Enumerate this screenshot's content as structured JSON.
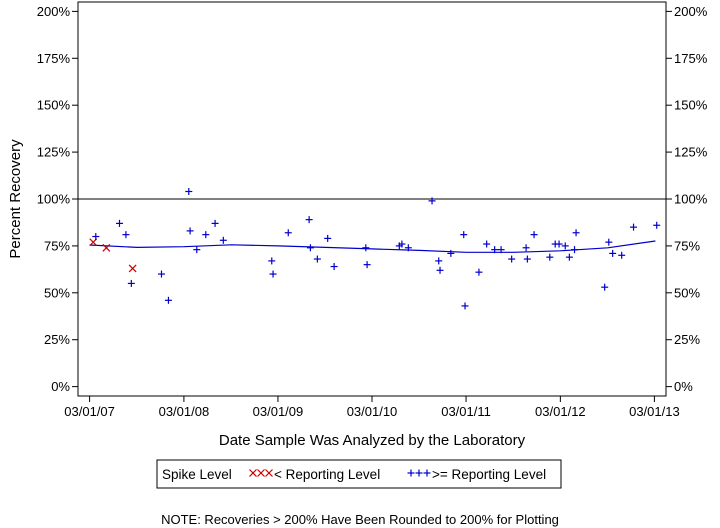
{
  "chart_data": {
    "type": "scatter",
    "xlabel": "Date Sample Was Analyzed by the Laboratory",
    "ylabel": "Percent Recovery",
    "x_ticks": [
      "03/01/07",
      "03/01/08",
      "03/01/09",
      "03/01/10",
      "03/01/11",
      "03/01/12",
      "03/01/13"
    ],
    "y_ticks": [
      "0%",
      "25%",
      "50%",
      "75%",
      "100%",
      "125%",
      "150%",
      "175%",
      "200%"
    ],
    "x_range": [
      "2007-01-15",
      "2013-04-15"
    ],
    "ylim": [
      -5,
      205
    ],
    "reference_line": 100,
    "grid": false,
    "legend_position": "bottom",
    "legend_title": "Spike Level",
    "series": [
      {
        "name": "< Reporting Level",
        "marker": "x",
        "color": "#cc0000",
        "points": [
          {
            "x": "2007-03-15",
            "y": 77
          },
          {
            "x": "2007-05-05",
            "y": 74
          },
          {
            "x": "2007-08-15",
            "y": 63
          }
        ]
      },
      {
        "name": ">= Reporting Level",
        "marker": "+",
        "color": "#0000cc",
        "points": [
          {
            "x": "2007-03-25",
            "y": 80
          },
          {
            "x": "2007-06-25",
            "y": 87
          },
          {
            "x": "2007-07-20",
            "y": 81
          },
          {
            "x": "2007-08-10",
            "y": 55
          },
          {
            "x": "2007-12-05",
            "y": 60
          },
          {
            "x": "2008-01-01",
            "y": 46
          },
          {
            "x": "2008-03-20",
            "y": 104
          },
          {
            "x": "2008-03-25",
            "y": 83
          },
          {
            "x": "2008-04-20",
            "y": 73
          },
          {
            "x": "2008-05-25",
            "y": 81
          },
          {
            "x": "2008-06-30",
            "y": 87
          },
          {
            "x": "2008-08-01",
            "y": 78
          },
          {
            "x": "2009-02-05",
            "y": 67
          },
          {
            "x": "2009-02-10",
            "y": 60
          },
          {
            "x": "2009-04-10",
            "y": 82
          },
          {
            "x": "2009-06-30",
            "y": 89
          },
          {
            "x": "2009-07-05",
            "y": 74
          },
          {
            "x": "2009-08-01",
            "y": 68
          },
          {
            "x": "2009-09-10",
            "y": 79
          },
          {
            "x": "2009-10-05",
            "y": 64
          },
          {
            "x": "2010-02-05",
            "y": 74
          },
          {
            "x": "2010-02-10",
            "y": 65
          },
          {
            "x": "2010-06-15",
            "y": 75
          },
          {
            "x": "2010-06-25",
            "y": 76
          },
          {
            "x": "2010-07-20",
            "y": 74
          },
          {
            "x": "2010-10-20",
            "y": 99
          },
          {
            "x": "2010-11-15",
            "y": 67
          },
          {
            "x": "2010-11-20",
            "y": 62
          },
          {
            "x": "2011-01-01",
            "y": 71
          },
          {
            "x": "2011-02-20",
            "y": 81
          },
          {
            "x": "2011-02-25",
            "y": 43
          },
          {
            "x": "2011-04-20",
            "y": 61
          },
          {
            "x": "2011-05-20",
            "y": 76
          },
          {
            "x": "2011-06-20",
            "y": 73
          },
          {
            "x": "2011-07-15",
            "y": 73
          },
          {
            "x": "2011-08-25",
            "y": 68
          },
          {
            "x": "2011-10-20",
            "y": 74
          },
          {
            "x": "2011-10-25",
            "y": 68
          },
          {
            "x": "2011-11-20",
            "y": 81
          },
          {
            "x": "2012-01-20",
            "y": 69
          },
          {
            "x": "2012-02-10",
            "y": 76
          },
          {
            "x": "2012-02-25",
            "y": 76
          },
          {
            "x": "2012-03-20",
            "y": 75
          },
          {
            "x": "2012-04-05",
            "y": 69
          },
          {
            "x": "2012-04-25",
            "y": 73
          },
          {
            "x": "2012-05-01",
            "y": 82
          },
          {
            "x": "2012-08-20",
            "y": 53
          },
          {
            "x": "2012-09-05",
            "y": 77
          },
          {
            "x": "2012-09-20",
            "y": 71
          },
          {
            "x": "2012-10-25",
            "y": 70
          },
          {
            "x": "2012-12-10",
            "y": 85
          },
          {
            "x": "2013-03-10",
            "y": 86
          }
        ]
      }
    ],
    "trend_line": {
      "color": "#0000cc",
      "points": [
        {
          "x": "2007-03-01",
          "y": 75.5
        },
        {
          "x": "2007-09-01",
          "y": 74.2
        },
        {
          "x": "2008-03-01",
          "y": 74.6
        },
        {
          "x": "2008-09-01",
          "y": 75.6
        },
        {
          "x": "2009-03-01",
          "y": 75.0
        },
        {
          "x": "2009-09-01",
          "y": 74.2
        },
        {
          "x": "2010-03-01",
          "y": 73.4
        },
        {
          "x": "2010-09-01",
          "y": 72.6
        },
        {
          "x": "2011-03-01",
          "y": 71.6
        },
        {
          "x": "2011-09-01",
          "y": 71.6
        },
        {
          "x": "2012-03-01",
          "y": 72.4
        },
        {
          "x": "2012-09-01",
          "y": 74.0
        },
        {
          "x": "2013-03-05",
          "y": 77.6
        }
      ]
    },
    "note": "NOTE: Recoveries > 200% Have Been Rounded to 200% for Plotting"
  }
}
